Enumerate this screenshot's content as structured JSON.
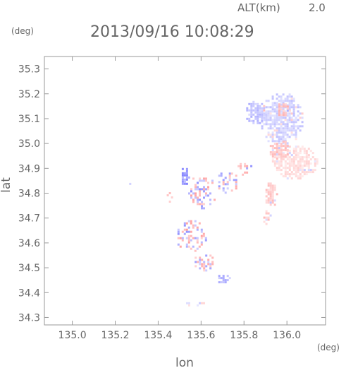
{
  "header": {
    "altitude_label": "ALT(km)",
    "altitude_value": "2.0",
    "timestamp": "2013/09/16 10:08:29"
  },
  "axes": {
    "y_unit": "(deg)",
    "x_unit": "(deg)"
  },
  "colors": {
    "frame": "#9a9a9a",
    "text": "#666666",
    "negative": "#7f7fff",
    "positive": "#ff8f8f"
  },
  "chart_data": {
    "type": "heatmap",
    "xlabel": "lon",
    "ylabel": "lat",
    "xlim": [
      134.87,
      136.18
    ],
    "ylim": [
      34.27,
      35.35
    ],
    "x_ticks": [
      "135.0",
      "135.2",
      "135.4",
      "135.6",
      "135.8",
      "136.0"
    ],
    "y_ticks": [
      "34.3",
      "34.4",
      "34.5",
      "34.6",
      "34.7",
      "34.8",
      "34.9",
      "35.0",
      "35.1",
      "35.2",
      "35.3"
    ],
    "grid": false,
    "legend": "none",
    "regions": [
      {
        "lon": 135.97,
        "lat": 35.1,
        "rx": 0.1,
        "ry": 0.11,
        "sign": -1,
        "strength": 0.35
      },
      {
        "lon": 135.85,
        "lat": 35.13,
        "rx": 0.05,
        "ry": 0.05,
        "sign": -1,
        "strength": 0.45
      },
      {
        "lon": 136.03,
        "lat": 34.93,
        "rx": 0.11,
        "ry": 0.07,
        "sign": 1,
        "strength": 0.3
      },
      {
        "lon": 135.96,
        "lat": 34.98,
        "rx": 0.05,
        "ry": 0.04,
        "sign": 1,
        "strength": 0.45
      },
      {
        "lon": 135.92,
        "lat": 34.8,
        "rx": 0.03,
        "ry": 0.06,
        "sign": 1,
        "strength": 0.45
      },
      {
        "lon": 135.9,
        "lat": 34.71,
        "rx": 0.02,
        "ry": 0.03,
        "sign": 1,
        "strength": 0.45
      },
      {
        "lon": 135.98,
        "lat": 35.14,
        "rx": 0.03,
        "ry": 0.03,
        "sign": 1,
        "strength": 0.5
      },
      {
        "lon": 135.6,
        "lat": 34.81,
        "rx": 0.07,
        "ry": 0.07,
        "sign": 0,
        "strength": 0.6
      },
      {
        "lon": 135.72,
        "lat": 34.85,
        "rx": 0.05,
        "ry": 0.05,
        "sign": 0,
        "strength": 0.55
      },
      {
        "lon": 135.55,
        "lat": 34.63,
        "rx": 0.07,
        "ry": 0.07,
        "sign": 0,
        "strength": 0.6
      },
      {
        "lon": 135.61,
        "lat": 34.53,
        "rx": 0.05,
        "ry": 0.04,
        "sign": 0,
        "strength": 0.55
      },
      {
        "lon": 135.52,
        "lat": 34.87,
        "rx": 0.02,
        "ry": 0.04,
        "sign": -1,
        "strength": 0.7
      },
      {
        "lon": 135.8,
        "lat": 34.9,
        "rx": 0.04,
        "ry": 0.03,
        "sign": 0,
        "strength": 0.6
      },
      {
        "lon": 135.7,
        "lat": 34.46,
        "rx": 0.03,
        "ry": 0.02,
        "sign": -1,
        "strength": 0.5
      },
      {
        "lon": 135.45,
        "lat": 34.8,
        "rx": 0.02,
        "ry": 0.03,
        "sign": 0,
        "strength": 0.5
      },
      {
        "lon": 135.57,
        "lat": 34.36,
        "rx": 0.05,
        "ry": 0.01,
        "sign": 0,
        "strength": 0.3
      },
      {
        "lon": 135.26,
        "lat": 34.84,
        "rx": 0.005,
        "ry": 0.01,
        "sign": -1,
        "strength": 0.5
      }
    ]
  }
}
